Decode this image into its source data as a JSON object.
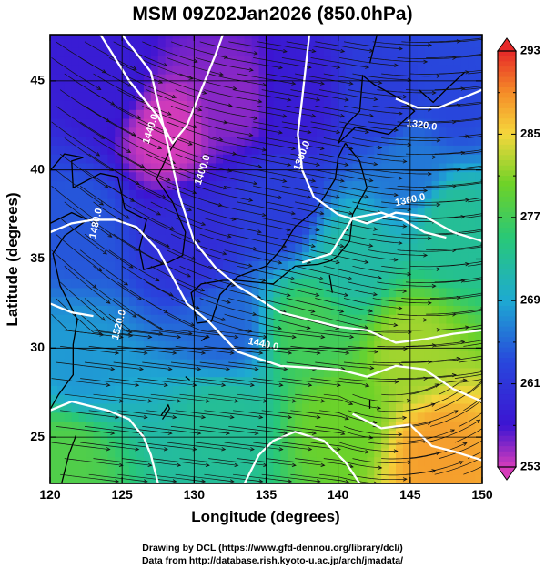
{
  "chart_data": {
    "type": "heatmap",
    "title": "MSM 09Z02Jan2026 (850.0hPa)",
    "xlabel": "Longitude (degrees)",
    "ylabel": "Latitude  (degrees)",
    "xlim": [
      120,
      150
    ],
    "ylim": [
      22.4,
      47.6
    ],
    "x_ticks": [
      "120",
      "125",
      "130",
      "135",
      "140",
      "145",
      "150"
    ],
    "y_ticks": [
      "25",
      "30",
      "35",
      "40",
      "45"
    ],
    "grid": true,
    "colorbar": {
      "min": 253,
      "max": 293,
      "tick_labels": [
        "293",
        "285",
        "277",
        "269",
        "261",
        "253"
      ],
      "extend": "both"
    },
    "temperature_field": [
      {
        "lon": 128,
        "lat": 42,
        "value": 253
      },
      {
        "lon": 133,
        "lat": 44,
        "value": 255
      },
      {
        "lon": 124,
        "lat": 45,
        "value": 258
      },
      {
        "lon": 137,
        "lat": 44,
        "value": 258
      },
      {
        "lon": 130,
        "lat": 36,
        "value": 260
      },
      {
        "lon": 136,
        "lat": 38,
        "value": 262
      },
      {
        "lon": 143,
        "lat": 44,
        "value": 262
      },
      {
        "lon": 148,
        "lat": 44,
        "value": 263
      },
      {
        "lon": 122,
        "lat": 37,
        "value": 264
      },
      {
        "lon": 132,
        "lat": 31,
        "value": 265
      },
      {
        "lon": 145,
        "lat": 40,
        "value": 266
      },
      {
        "lon": 122,
        "lat": 29,
        "value": 268
      },
      {
        "lon": 141,
        "lat": 35,
        "value": 272
      },
      {
        "lon": 132,
        "lat": 26,
        "value": 273
      },
      {
        "lon": 148,
        "lat": 37,
        "value": 273
      },
      {
        "lon": 138,
        "lat": 31,
        "value": 277
      },
      {
        "lon": 121,
        "lat": 24,
        "value": 278
      },
      {
        "lon": 140,
        "lat": 26,
        "value": 280
      },
      {
        "lon": 145,
        "lat": 30,
        "value": 282
      },
      {
        "lon": 147,
        "lat": 24,
        "value": 288
      }
    ],
    "contour_labels": [
      "1440.0",
      "1400.0",
      "1480.0",
      "1360.0",
      "1520.0",
      "1320.0",
      "1360.0",
      "1440.0"
    ]
  },
  "credits": {
    "line1": "Drawing by DCL (https://www.gfd-dennou.org/library/dcl/)",
    "line2": "Data from http://database.rish.kyoto-u.ac.jp/arch/jmadata/"
  }
}
